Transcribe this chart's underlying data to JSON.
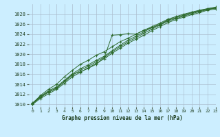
{
  "background_color": "#cceeff",
  "grid_color": "#aabbcc",
  "line_color": "#2d6a2d",
  "title": "Graphe pression niveau de la mer (hPa)",
  "xlim": [
    -0.5,
    23
  ],
  "ylim": [
    1009.5,
    1030
  ],
  "yticks": [
    1010,
    1012,
    1014,
    1016,
    1018,
    1020,
    1022,
    1024,
    1026,
    1028
  ],
  "xticks": [
    0,
    1,
    2,
    3,
    4,
    5,
    6,
    7,
    8,
    9,
    10,
    11,
    12,
    13,
    14,
    15,
    16,
    17,
    18,
    19,
    20,
    21,
    22,
    23
  ],
  "series": [
    [
      1010.2,
      1011.5,
      1012.5,
      1013.3,
      1014.6,
      1016.0,
      1016.5,
      1017.2,
      1018.0,
      1019.3,
      1023.8,
      1023.9,
      1024.1,
      1024.0,
      1024.8,
      1025.3,
      1025.9,
      1026.8,
      1027.3,
      1027.8,
      1028.3,
      1028.7,
      1029.0,
      1029.2
    ],
    [
      1010.1,
      1011.4,
      1012.4,
      1013.2,
      1014.5,
      1015.8,
      1016.8,
      1017.6,
      1018.5,
      1019.4,
      1020.5,
      1021.5,
      1022.5,
      1023.3,
      1024.2,
      1025.0,
      1025.8,
      1026.6,
      1027.1,
      1027.6,
      1028.1,
      1028.5,
      1028.9,
      1029.2
    ],
    [
      1010.0,
      1011.2,
      1012.1,
      1013.0,
      1014.2,
      1015.5,
      1016.4,
      1017.3,
      1018.2,
      1019.1,
      1020.2,
      1021.2,
      1022.2,
      1023.0,
      1023.8,
      1024.7,
      1025.5,
      1026.3,
      1026.9,
      1027.4,
      1027.9,
      1028.3,
      1028.8,
      1029.0
    ],
    [
      1010.3,
      1011.6,
      1012.7,
      1013.5,
      1014.8,
      1016.1,
      1017.1,
      1017.9,
      1018.8,
      1019.6,
      1020.7,
      1021.8,
      1022.8,
      1023.6,
      1024.5,
      1025.3,
      1026.0,
      1026.8,
      1027.3,
      1027.8,
      1028.3,
      1028.6,
      1029.1,
      1029.3
    ],
    [
      1010.2,
      1011.8,
      1013.0,
      1014.0,
      1015.5,
      1016.8,
      1018.0,
      1018.8,
      1019.8,
      1020.5,
      1021.5,
      1022.5,
      1023.2,
      1024.0,
      1024.8,
      1025.5,
      1026.2,
      1027.0,
      1027.5,
      1028.0,
      1028.4,
      1028.8,
      1029.1,
      1029.4
    ]
  ]
}
